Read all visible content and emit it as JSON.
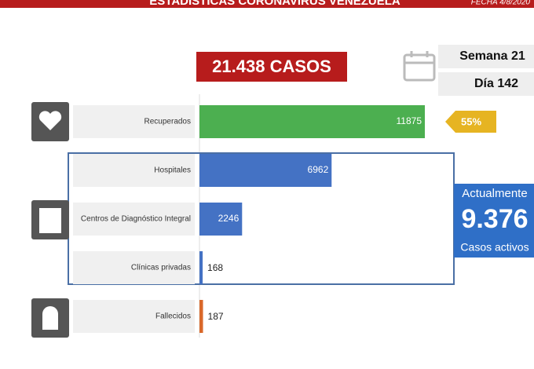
{
  "header": {
    "title": "ESTADÍSTICAS CORONAVIRUS VENEZUELA",
    "date": "FECHA 4/8/2020"
  },
  "total": "21.438 CASOS",
  "week": "Semana 21",
  "day": "Día 142",
  "recovered_share": "55%",
  "active": {
    "label_top": "Actualmente",
    "number": "9.376",
    "label_bottom": "Casos activos"
  },
  "chart_data": {
    "type": "bar",
    "categories": [
      "Recuperados",
      "Hospitales",
      "Centros de Diagnóstico Integral",
      "Clínicas privadas",
      "Fallecidos"
    ],
    "values": [
      11875,
      6962,
      2246,
      168,
      187
    ],
    "colors": [
      "#4caf50",
      "#4472c4",
      "#4472c4",
      "#4472c4",
      "#d9682a"
    ]
  }
}
